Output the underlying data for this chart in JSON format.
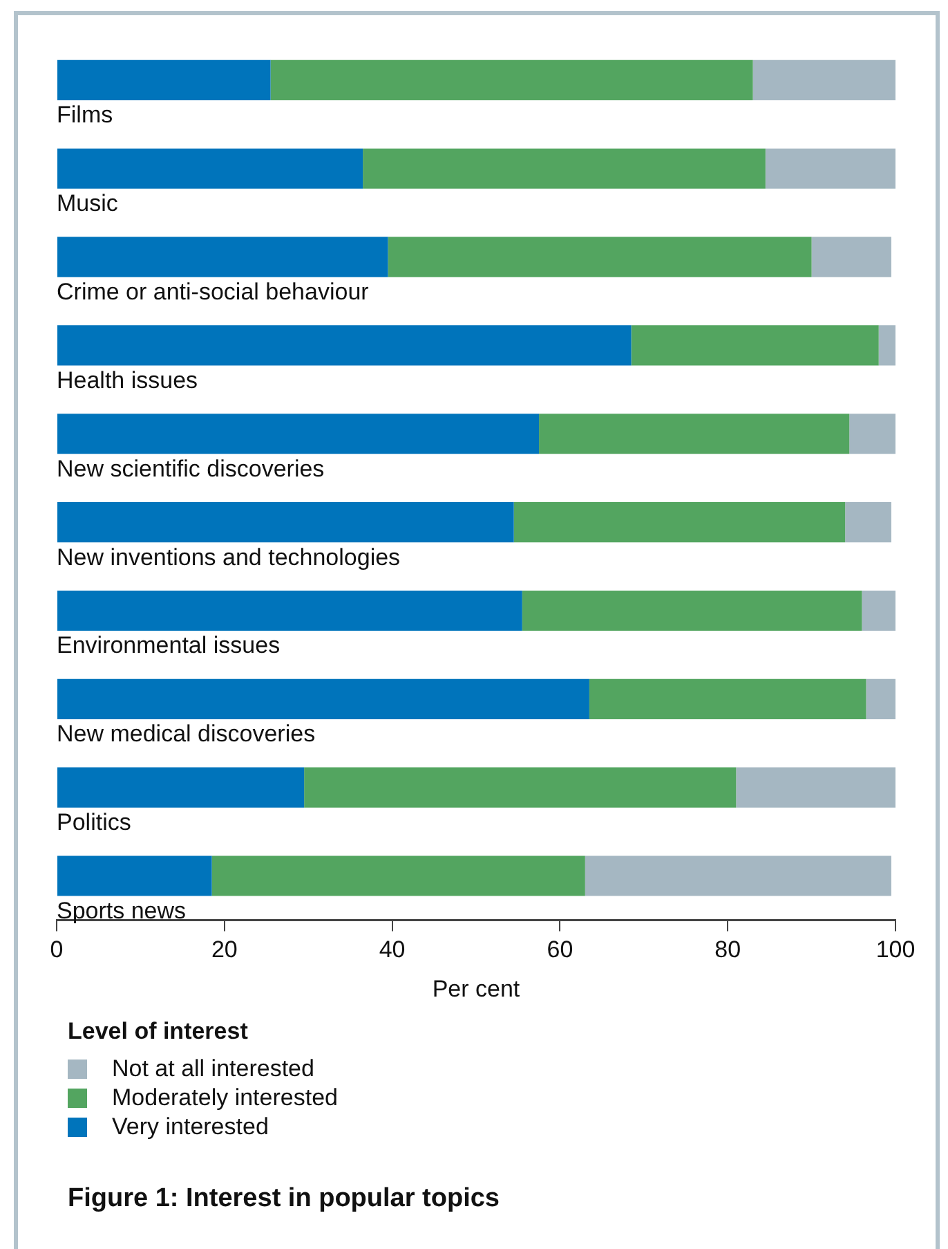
{
  "chart_data": {
    "type": "bar",
    "orientation": "horizontal",
    "stacked": true,
    "title": "Figure 1: Interest in popular topics",
    "xlabel": "Per cent",
    "legend_title": "Level of interest",
    "legend": "bottom",
    "grid": false,
    "categories": [
      "Films",
      "Music",
      "Crime or anti-social behaviour",
      "Health issues",
      "New scientific discoveries",
      "New inventions and technologies",
      "Environmental issues",
      "New medical discoveries",
      "Politics",
      "Sports news"
    ],
    "series": [
      {
        "name": "Very interested",
        "color": "#0074bb",
        "values": [
          25.5,
          36.5,
          39.5,
          68.5,
          57.5,
          54.5,
          55.5,
          63.5,
          29.5,
          18.5
        ]
      },
      {
        "name": "Moderately interested",
        "color": "#53a560",
        "values": [
          57.5,
          48,
          50.5,
          29.5,
          37,
          39.5,
          40.5,
          33,
          51.5,
          44.5
        ]
      },
      {
        "name": "Not at all interested",
        "color": "#a5b7c2",
        "values": [
          17,
          15.5,
          9.5,
          2,
          5.5,
          5.5,
          4,
          3.5,
          19,
          36.5
        ]
      }
    ],
    "xlim": [
      0,
      100
    ],
    "xticks": [
      0,
      20,
      40,
      60,
      80,
      100
    ]
  }
}
